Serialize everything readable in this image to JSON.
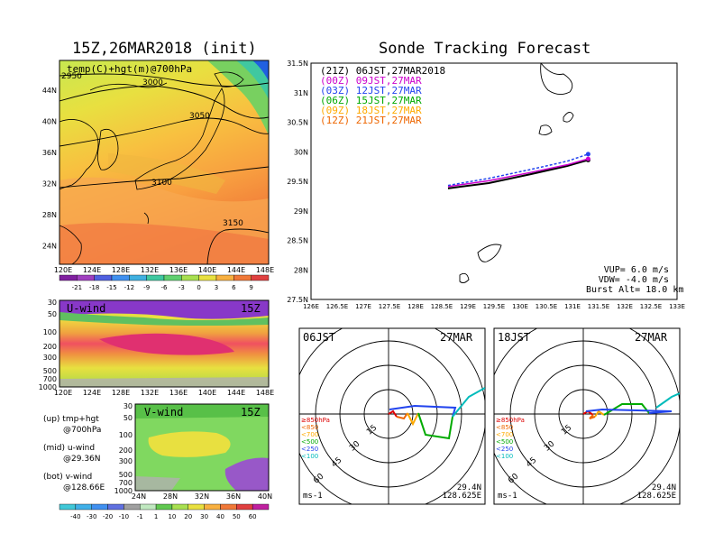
{
  "map_panel": {
    "title": "15Z,26MAR2018 (init)",
    "field_label": "temp(C)+hgt(m)@700hPa",
    "lat_ticks": [
      "44N",
      "40N",
      "36N",
      "32N",
      "28N",
      "24N"
    ],
    "lon_ticks": [
      "120E",
      "124E",
      "128E",
      "132E",
      "136E",
      "140E",
      "144E",
      "148E"
    ],
    "contour_labels": [
      "2950",
      "3000",
      "3050",
      "3100",
      "3150"
    ],
    "colorbar_ticks": [
      "-21",
      "-18",
      "-15",
      "-12",
      "-9",
      "-6",
      "-3",
      "0",
      "3",
      "6",
      "9"
    ]
  },
  "u_panel": {
    "label": "U-wind",
    "time": "15Z",
    "p_ticks": [
      "30",
      "50",
      "100",
      "200",
      "300",
      "500",
      "700",
      "1000"
    ],
    "lon_ticks": [
      "120E",
      "124E",
      "128E",
      "132E",
      "136E",
      "140E",
      "144E",
      "148E"
    ]
  },
  "v_panel": {
    "label": "V-wind",
    "time": "15Z",
    "p_ticks": [
      "30",
      "50",
      "100",
      "200",
      "300",
      "500",
      "700",
      "1000"
    ],
    "lat_ticks": [
      "24N",
      "28N",
      "32N",
      "36N",
      "40N"
    ],
    "colorbar_ticks": [
      "-40",
      "-30",
      "-20",
      "-10",
      "-1",
      "1",
      "10",
      "20",
      "30",
      "40",
      "50",
      "60"
    ]
  },
  "legend_notes": {
    "up_line1": "(up) tmp+hgt",
    "up_line2": "@700hPa",
    "mid_line1": "(mid) u-wind",
    "mid_line2": "@29.36N",
    "bot_line1": "(bot) v-wind",
    "bot_line2": "@128.66E"
  },
  "track_panel": {
    "title": "Sonde Tracking Forecast",
    "legend": [
      {
        "label": "(21Z) 06JST,27MAR2018",
        "color": "#000000"
      },
      {
        "label": "(00Z) 09JST,27MAR",
        "color": "#cc00cc"
      },
      {
        "label": "(03Z) 12JST,27MAR",
        "color": "#2244ee"
      },
      {
        "label": "(06Z) 15JST,27MAR",
        "color": "#00aa00"
      },
      {
        "label": "(09Z) 18JST,27MAR",
        "color": "#ffaa00"
      },
      {
        "label": "(12Z) 21JST,27MAR",
        "color": "#ee6600"
      }
    ],
    "lat_ticks": [
      "31.5N",
      "31N",
      "30.5N",
      "30N",
      "29.5N",
      "29N",
      "28.5N",
      "28N",
      "27.5N"
    ],
    "lon_ticks": [
      "126E",
      "126.5E",
      "127E",
      "127.5E",
      "128E",
      "128.5E",
      "129E",
      "129.5E",
      "130E",
      "130.5E",
      "131E",
      "131.5E",
      "132E",
      "132.5E",
      "133E"
    ],
    "params": [
      "VUP= 6.0 m/s",
      "VDW= -4.0 m/s",
      "Burst Alt= 18.0 km"
    ]
  },
  "polar_left": {
    "time_label": "06JST",
    "date_label": "27MAR",
    "ring_labels": [
      "15",
      "30",
      "45",
      "60"
    ],
    "levels": [
      "≥850hPa",
      "<850",
      "<700",
      "<500",
      "<250",
      "<100"
    ],
    "level_colors": [
      "#dd0000",
      "#ee6600",
      "#ffaa00",
      "#00aa00",
      "#2244ee",
      "#00bbbb"
    ],
    "units": "ms-1",
    "lat": "29.4N",
    "lon": "128.625E"
  },
  "polar_right": {
    "time_label": "18JST",
    "date_label": "27MAR",
    "ring_labels": [
      "15",
      "30",
      "45",
      "60"
    ],
    "levels": [
      "≥850hPa",
      "<850",
      "<700",
      "<500",
      "<250",
      "<100"
    ],
    "level_colors": [
      "#dd0000",
      "#ee6600",
      "#ffaa00",
      "#00aa00",
      "#2244ee",
      "#00bbbb"
    ],
    "units": "ms-1",
    "lat": "29.4N",
    "lon": "128.625E"
  },
  "chart_data": [
    {
      "type": "line",
      "title": "Sonde Tracking Forecast",
      "xlabel": "",
      "ylabel": "",
      "xlim": [
        126,
        133
      ],
      "ylim": [
        27.5,
        31.5
      ],
      "series": [
        {
          "name": "(21Z) 06JST,27MAR2018",
          "x": [
            128.62,
            129.4,
            130.2,
            130.9,
            131.3
          ],
          "y": [
            29.38,
            29.47,
            29.62,
            29.76,
            29.86
          ]
        },
        {
          "name": "(00Z) 09JST,27MAR",
          "x": [
            128.62,
            129.4,
            130.2,
            130.9,
            131.3
          ],
          "y": [
            29.41,
            29.51,
            29.65,
            29.78,
            29.88
          ]
        },
        {
          "name": "(03Z) 12JST,27MAR",
          "x": [
            128.62,
            129.4,
            130.2,
            130.9,
            131.3
          ],
          "y": [
            29.43,
            29.55,
            29.7,
            29.84,
            29.96
          ]
        }
      ]
    }
  ]
}
